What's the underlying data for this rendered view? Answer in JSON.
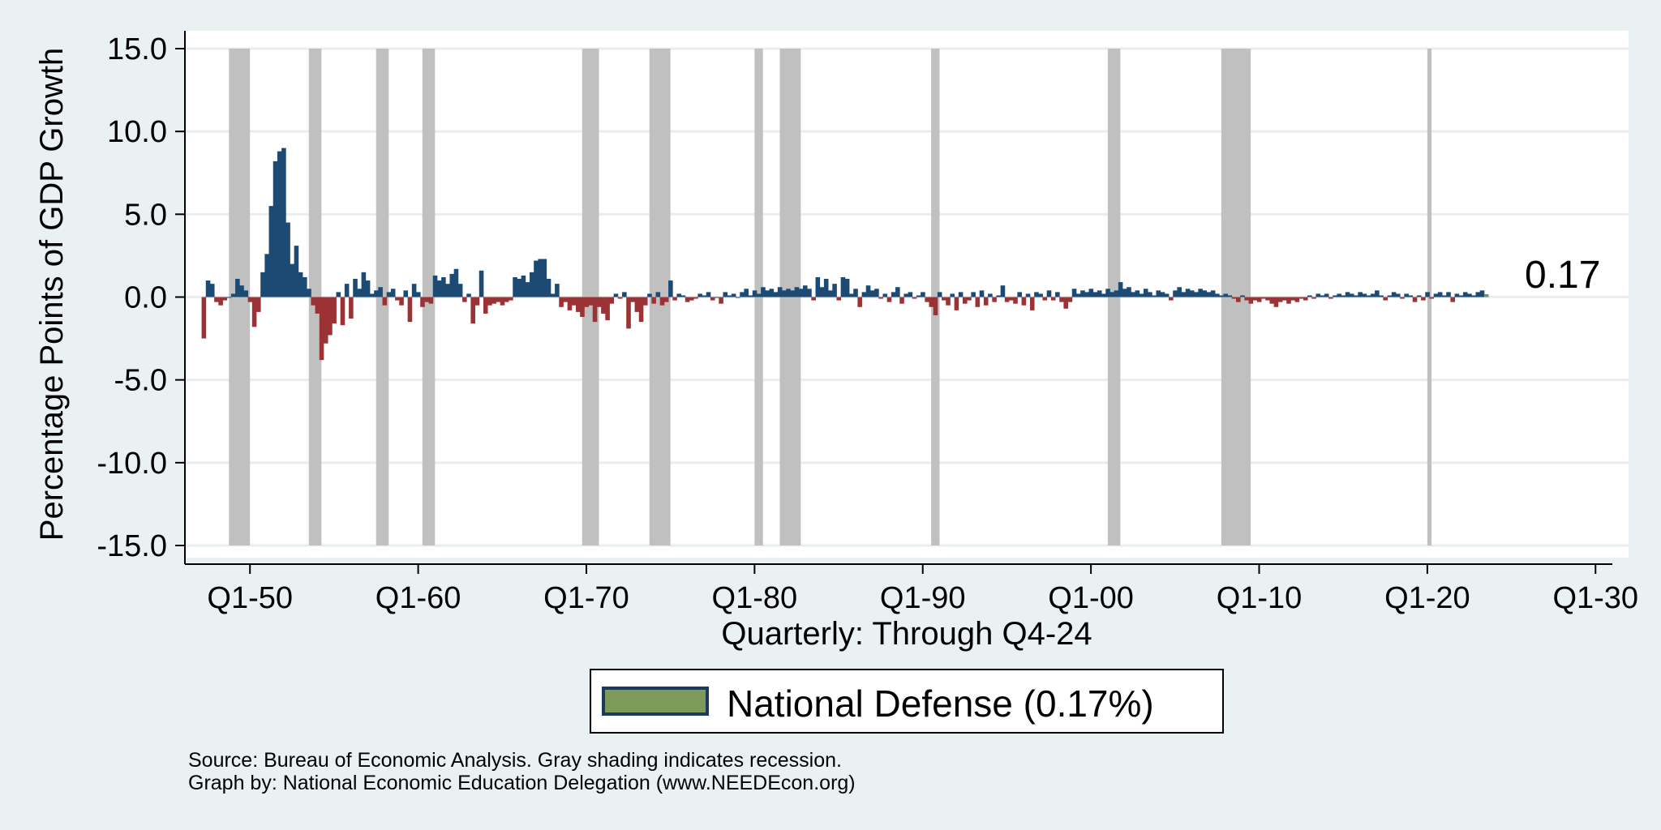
{
  "chart_data": {
    "type": "bar",
    "title": "",
    "ylabel": "Percentage Points of GDP Growth",
    "xlabel": "Quarterly: Through Q4-24",
    "ylim": [
      -15,
      15
    ],
    "yticks": [
      15,
      10,
      5,
      0,
      -5,
      -10,
      -15
    ],
    "ytick_labels": [
      "15.0",
      "10.0",
      "5.0",
      "0.0",
      "-5.0",
      "-10.0",
      "-15.0"
    ],
    "xlim": [
      1947.0,
      2031.0
    ],
    "xticks": [
      1950,
      1960,
      1970,
      1980,
      1990,
      2000,
      2010,
      2020,
      2030
    ],
    "xtick_labels": [
      "Q1-50",
      "Q1-60",
      "Q1-70",
      "Q1-80",
      "Q1-90",
      "Q1-00",
      "Q1-10",
      "Q1-20",
      "Q1-30"
    ],
    "colors": {
      "positive": "#1c4a73",
      "negative": "#9b3235",
      "latest": "#6f8f73",
      "recession": "#c0c0c0",
      "legend_fill": "#7d9a5a",
      "legend_border": "#1c3a5c",
      "plot_bg": "#ffffff",
      "grid": "#e6eef0"
    },
    "recessions": [
      [
        1948.75,
        1950.0
      ],
      [
        1953.5,
        1954.25
      ],
      [
        1957.5,
        1958.25
      ],
      [
        1960.25,
        1961.0
      ],
      [
        1969.75,
        1970.75
      ],
      [
        1973.75,
        1975.0
      ],
      [
        1980.0,
        1980.5
      ],
      [
        1981.5,
        1982.75
      ],
      [
        1990.5,
        1991.0
      ],
      [
        2001.0,
        2001.75
      ],
      [
        2007.75,
        2009.5
      ],
      [
        2020.0,
        2020.25
      ]
    ],
    "series": [
      {
        "name": "National Defense",
        "start": 1947.25,
        "step": 0.25,
        "values": [
          -2.5,
          1.0,
          0.8,
          -0.3,
          -0.5,
          -0.2,
          0.0,
          0.2,
          1.1,
          0.7,
          0.4,
          -0.3,
          -1.8,
          -0.9,
          1.5,
          2.6,
          5.5,
          8.2,
          8.8,
          9.0,
          4.5,
          2.0,
          3.1,
          1.5,
          1.2,
          0.5,
          -0.5,
          -1.0,
          -3.8,
          -2.8,
          -2.3,
          -1.6,
          0.3,
          -1.7,
          0.8,
          -1.3,
          1.1,
          0.5,
          1.5,
          1.0,
          0.2,
          0.4,
          0.6,
          -0.5,
          0.3,
          0.5,
          -0.2,
          -0.5,
          0.4,
          -1.5,
          0.8,
          0.3,
          -0.6,
          -0.3,
          -0.4,
          1.3,
          1.0,
          1.2,
          0.8,
          1.4,
          1.7,
          0.8,
          -0.3,
          0.2,
          -1.6,
          -0.5,
          1.6,
          -1.0,
          -0.5,
          -0.4,
          -0.3,
          -0.5,
          -0.3,
          -0.2,
          1.2,
          1.1,
          1.3,
          0.9,
          1.5,
          2.2,
          2.3,
          2.3,
          1.1,
          0.2,
          0.8,
          -0.6,
          -0.3,
          -0.8,
          -0.5,
          -0.9,
          -1.2,
          -0.6,
          -0.5,
          -1.5,
          -0.6,
          -1.0,
          -1.4,
          -0.4,
          0.2,
          -0.1,
          0.3,
          -1.9,
          -0.3,
          -0.9,
          -1.5,
          -0.5,
          0.2,
          -0.4,
          0.3,
          -0.5,
          -0.3,
          1.0,
          -0.2,
          0.2,
          0.1,
          -0.3,
          -0.2,
          -0.1,
          0.2,
          0.1,
          0.3,
          -0.2,
          0.0,
          -0.4,
          0.3,
          0.1,
          0.2,
          0.0,
          0.3,
          0.5,
          0.1,
          0.4,
          0.2,
          0.6,
          0.4,
          0.5,
          0.3,
          0.6,
          0.4,
          0.5,
          0.4,
          0.6,
          0.5,
          0.7,
          0.5,
          -0.2,
          1.2,
          0.6,
          1.1,
          0.4,
          0.8,
          -0.2,
          1.2,
          1.1,
          0.2,
          0.5,
          -0.6,
          0.3,
          0.7,
          0.4,
          0.5,
          -0.1,
          0.2,
          -0.3,
          0.3,
          0.6,
          -0.4,
          0.2,
          0.3,
          -0.1,
          0.1,
          0.3,
          -0.3,
          -0.6,
          -1.1,
          0.3,
          -0.2,
          -0.5,
          0.2,
          -0.8,
          0.3,
          -0.4,
          -0.2,
          0.3,
          -0.6,
          0.4,
          -0.5,
          0.2,
          -0.3,
          0.1,
          0.7,
          -0.3,
          -0.2,
          -0.4,
          0.3,
          -0.5,
          0.2,
          -0.8,
          0.3,
          0.2,
          -0.2,
          0.4,
          -0.2,
          0.3,
          -0.3,
          -0.7,
          -0.3,
          0.5,
          0.2,
          0.4,
          0.3,
          0.5,
          0.3,
          0.4,
          0.2,
          0.5,
          0.3,
          0.4,
          0.9,
          0.5,
          0.6,
          0.3,
          0.4,
          0.2,
          0.5,
          0.3,
          0.1,
          0.4,
          0.3,
          0.2,
          -0.2,
          0.4,
          0.6,
          0.3,
          0.5,
          0.4,
          0.3,
          0.5,
          0.4,
          0.3,
          0.4,
          0.2,
          0.1,
          0.2,
          0.1,
          -0.1,
          -0.3,
          0.1,
          -0.2,
          -0.4,
          -0.2,
          -0.3,
          -0.1,
          -0.2,
          -0.4,
          -0.6,
          -0.3,
          -0.2,
          -0.4,
          -0.2,
          -0.3,
          -0.1,
          -0.2,
          0.1,
          -0.1,
          0.2,
          0.1,
          0.2,
          -0.1,
          0.1,
          0.2,
          0.1,
          0.3,
          0.2,
          0.1,
          0.3,
          0.2,
          0.1,
          0.2,
          0.4,
          0.1,
          -0.2,
          0.1,
          0.3,
          0.2,
          -0.1,
          0.2,
          0.1,
          -0.3,
          0.1,
          -0.2,
          0.3,
          -0.1,
          0.2,
          0.3,
          0.1,
          0.3,
          -0.3,
          0.2,
          0.1,
          0.3,
          0.2,
          0.1,
          0.3,
          0.4,
          0.17
        ]
      }
    ],
    "end_label": "0.17",
    "legend": {
      "label": "National Defense (0.17%)",
      "position": "bottom"
    }
  },
  "source": {
    "line1": "Source: Bureau of Economic Analysis. Gray shading indicates recession.",
    "line2": "Graph by: National Economic Education Delegation (www.NEEDEcon.org)"
  }
}
